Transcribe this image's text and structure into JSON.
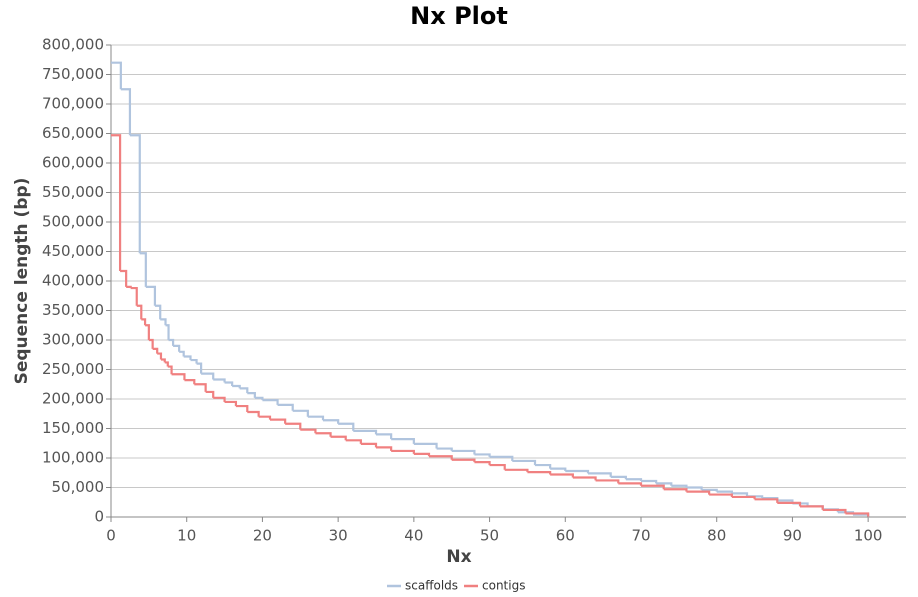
{
  "chart_data": {
    "type": "line",
    "step": true,
    "title": "Nx Plot",
    "x_label": "Nx",
    "y_label": "Sequence length (bp)",
    "xlim": [
      0,
      105
    ],
    "xticks": [
      0,
      10,
      20,
      30,
      40,
      50,
      60,
      70,
      80,
      90,
      100
    ],
    "ylim": [
      0,
      800000
    ],
    "yticks": [
      {
        "value": 0,
        "label": "0"
      },
      {
        "value": 50000,
        "label": "50,000"
      },
      {
        "value": 100000,
        "label": "100,000"
      },
      {
        "value": 150000,
        "label": "150,000"
      },
      {
        "value": 200000,
        "label": "200,000"
      },
      {
        "value": 250000,
        "label": "250,000"
      },
      {
        "value": 300000,
        "label": "300,000"
      },
      {
        "value": 350000,
        "label": "350,000"
      },
      {
        "value": 400000,
        "label": "400,000"
      },
      {
        "value": 450000,
        "label": "450,000"
      },
      {
        "value": 500000,
        "label": "500,000"
      },
      {
        "value": 550000,
        "label": "550,000"
      },
      {
        "value": 600000,
        "label": "600,000"
      },
      {
        "value": 650000,
        "label": "650,000"
      },
      {
        "value": 700000,
        "label": "700,000"
      },
      {
        "value": 750000,
        "label": "750,000"
      },
      {
        "value": 800000,
        "label": "800,000"
      }
    ],
    "grid": true,
    "legend": "bottom",
    "series": [
      {
        "name": "scaffolds",
        "color": "#b0c4de",
        "x": [
          0,
          1.3,
          2.5,
          3.8,
          4.6,
          5.8,
          6.5,
          7.2,
          7.6,
          8.2,
          9,
          9.6,
          10.5,
          11.3,
          11.9,
          13.5,
          15,
          16,
          17,
          18,
          19,
          20,
          22,
          24,
          26,
          28,
          30,
          32,
          35,
          37,
          40,
          43,
          45,
          48,
          50,
          53,
          56,
          58,
          60,
          63,
          66,
          68,
          70,
          72,
          74,
          76,
          78,
          80,
          82,
          84,
          86,
          88,
          90,
          92,
          94,
          96,
          98,
          100
        ],
        "values": [
          770000,
          725000,
          647000,
          447000,
          390000,
          358000,
          335000,
          325000,
          300000,
          290000,
          280000,
          272000,
          266000,
          260000,
          243000,
          233000,
          228000,
          222000,
          218000,
          210000,
          202000,
          198000,
          190000,
          180000,
          170000,
          164000,
          158000,
          146000,
          140000,
          132000,
          124000,
          116000,
          112000,
          106000,
          102000,
          95000,
          88000,
          82000,
          78000,
          74000,
          68000,
          64000,
          61000,
          57000,
          53000,
          50000,
          46000,
          43000,
          40000,
          35000,
          32000,
          28000,
          23000,
          18000,
          13000,
          8000,
          4000,
          1000
        ]
      },
      {
        "name": "contigs",
        "color": "#f08080",
        "x": [
          0,
          1.2,
          2,
          2.6,
          3.4,
          4,
          4.5,
          5,
          5.5,
          6.1,
          6.6,
          7.1,
          7.5,
          8,
          9.7,
          11,
          12.5,
          13.5,
          15,
          16.5,
          18,
          19.5,
          21,
          23,
          25,
          27,
          29,
          31,
          33,
          35,
          37,
          40,
          42,
          45,
          48,
          50,
          52,
          55,
          58,
          61,
          64,
          67,
          70,
          73,
          76,
          79,
          82,
          85,
          88,
          91,
          94,
          97,
          100
        ],
        "values": [
          647000,
          417000,
          390000,
          388000,
          358000,
          335000,
          325000,
          300000,
          285000,
          277000,
          267000,
          262000,
          255000,
          242000,
          232000,
          225000,
          212000,
          202000,
          195000,
          188000,
          178000,
          170000,
          165000,
          158000,
          148000,
          142000,
          136000,
          130000,
          124000,
          118000,
          112000,
          107000,
          103000,
          97000,
          93000,
          88000,
          80000,
          76000,
          72000,
          67000,
          62000,
          57000,
          53000,
          47000,
          43000,
          38000,
          34000,
          30000,
          24000,
          18000,
          12000,
          6000,
          1000
        ]
      }
    ]
  }
}
